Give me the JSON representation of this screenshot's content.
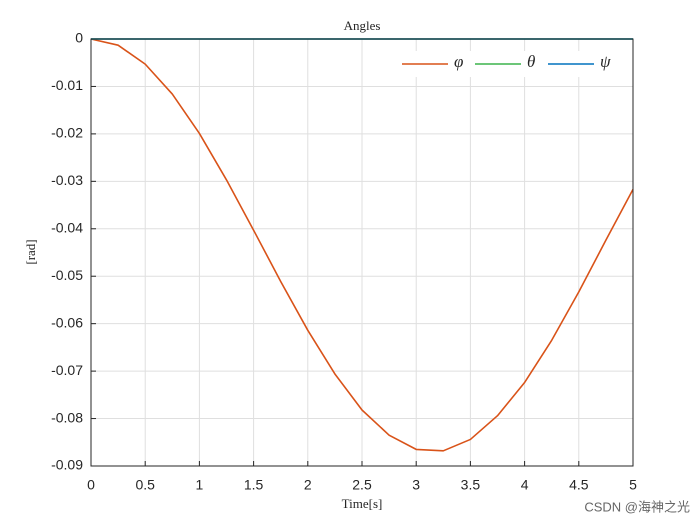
{
  "chart_data": {
    "type": "line",
    "title": "Angles",
    "x_label": "Time[s]",
    "y_label": "[rad]",
    "x": [
      0,
      0.25,
      0.5,
      0.75,
      1,
      1.25,
      1.5,
      1.75,
      2,
      2.25,
      2.5,
      2.75,
      3,
      3.25,
      3.5,
      3.75,
      4,
      4.25,
      4.5,
      4.75,
      5
    ],
    "series": [
      {
        "name": "φ",
        "color": "#d95319",
        "values": [
          0,
          -0.0013,
          -0.0053,
          -0.0116,
          -0.0199,
          -0.0297,
          -0.0403,
          -0.0511,
          -0.0614,
          -0.0706,
          -0.0782,
          -0.0835,
          -0.0865,
          -0.0868,
          -0.0844,
          -0.0794,
          -0.0724,
          -0.0635,
          -0.0533,
          -0.0424,
          -0.0317
        ]
      },
      {
        "name": "θ",
        "color": "#3cb44b",
        "values": [
          0,
          0,
          0,
          0,
          0,
          0,
          0,
          0,
          0,
          0,
          0,
          0,
          0,
          0,
          0,
          0,
          0,
          0,
          0,
          0,
          0
        ]
      },
      {
        "name": "ψ",
        "color": "#0072bd",
        "values": [
          0,
          0,
          0,
          0,
          0,
          0,
          0,
          0,
          0,
          0,
          0,
          0,
          0,
          0,
          0,
          0,
          0,
          0,
          0,
          0,
          0
        ]
      }
    ],
    "xlim": [
      0,
      5
    ],
    "xticks": [
      0,
      0.5,
      1,
      1.5,
      2,
      2.5,
      3,
      3.5,
      4,
      4.5,
      5
    ],
    "ylim": [
      -0.09,
      0
    ],
    "yticks": [
      -0.09,
      -0.08,
      -0.07,
      -0.06,
      -0.05,
      -0.04,
      -0.03,
      -0.02,
      -0.01,
      0
    ],
    "grid": true,
    "legend": "top-right",
    "legend_orientation": "horizontal"
  },
  "watermark": "CSDN @海神之光"
}
